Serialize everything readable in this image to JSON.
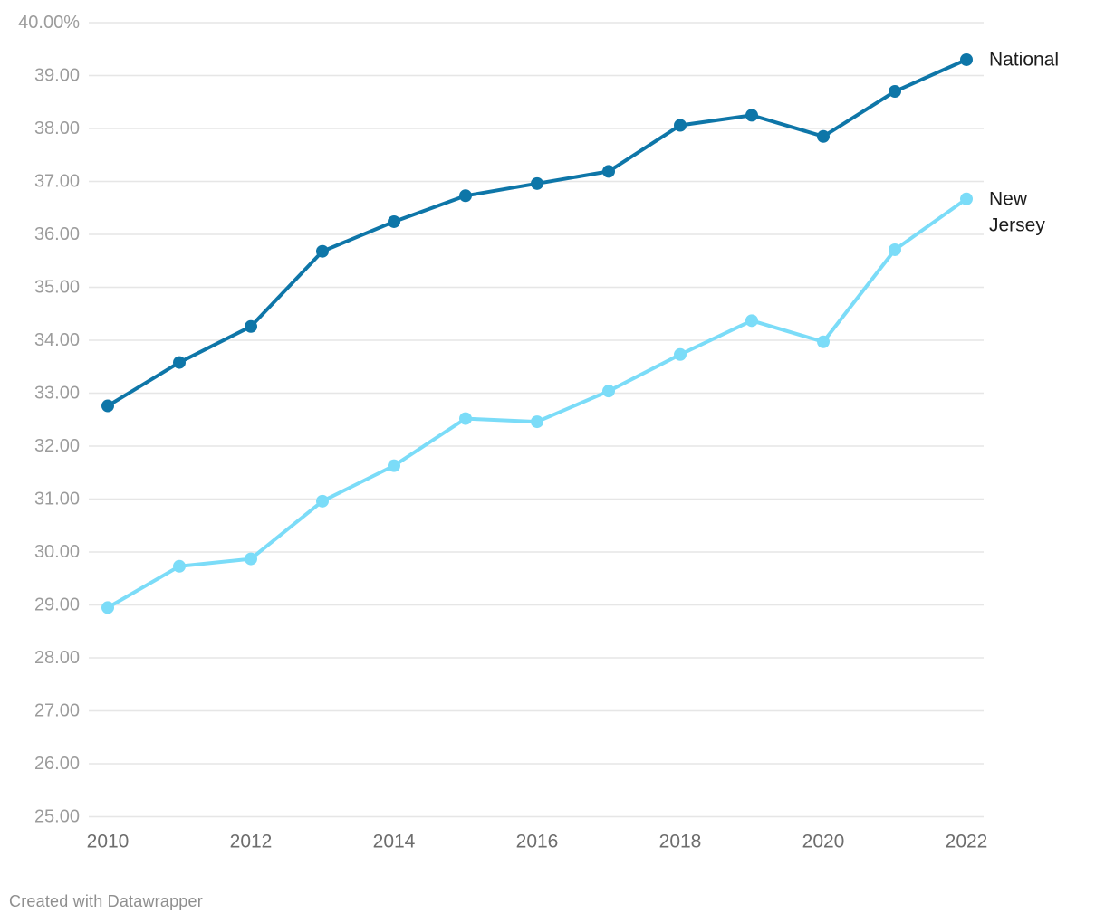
{
  "chart_data": {
    "type": "line",
    "x": [
      2010,
      2011,
      2012,
      2013,
      2014,
      2015,
      2016,
      2017,
      2018,
      2019,
      2020,
      2021,
      2022
    ],
    "x_ticks": [
      {
        "year": 2010,
        "label": "2010"
      },
      {
        "year": 2012,
        "label": "2012"
      },
      {
        "year": 2014,
        "label": "2014"
      },
      {
        "year": 2016,
        "label": "2016"
      },
      {
        "year": 2018,
        "label": "2018"
      },
      {
        "year": 2020,
        "label": "2020"
      },
      {
        "year": 2022,
        "label": "2022"
      }
    ],
    "y_axis": {
      "min": 25,
      "max": 40,
      "step": 1,
      "ticks": [
        {
          "v": 40,
          "label": "40.00%"
        },
        {
          "v": 39,
          "label": "39.00"
        },
        {
          "v": 38,
          "label": "38.00"
        },
        {
          "v": 37,
          "label": "37.00"
        },
        {
          "v": 36,
          "label": "36.00"
        },
        {
          "v": 35,
          "label": "35.00"
        },
        {
          "v": 34,
          "label": "34.00"
        },
        {
          "v": 33,
          "label": "33.00"
        },
        {
          "v": 32,
          "label": "32.00"
        },
        {
          "v": 31,
          "label": "31.00"
        },
        {
          "v": 30,
          "label": "30.00"
        },
        {
          "v": 29,
          "label": "29.00"
        },
        {
          "v": 28,
          "label": "28.00"
        },
        {
          "v": 27,
          "label": "27.00"
        },
        {
          "v": 26,
          "label": "26.00"
        },
        {
          "v": 25,
          "label": "25.00"
        }
      ]
    },
    "grid": true,
    "legend_position": "direct-labels-right",
    "series": [
      {
        "name": "National",
        "label_lines": [
          "National"
        ],
        "color": "#0e76a8",
        "values": [
          32.76,
          33.58,
          34.26,
          35.68,
          36.24,
          36.73,
          36.96,
          37.19,
          38.06,
          38.25,
          37.85,
          38.7,
          39.3
        ]
      },
      {
        "name": "New Jersey",
        "label_lines": [
          "New",
          "Jersey"
        ],
        "color": "#7bdcf8",
        "values": [
          28.95,
          29.73,
          29.87,
          30.96,
          31.63,
          32.52,
          32.46,
          33.04,
          33.73,
          34.37,
          33.97,
          35.71,
          36.67
        ]
      }
    ]
  },
  "colors": {
    "background": "#ffffff",
    "grid": "#e6e6e6",
    "y_tick_text": "#9c9c9c",
    "x_tick_text": "#6d6d6d",
    "series_label_text": "#1d1d1d",
    "footer_text": "#8f8f8f"
  },
  "footer": {
    "credit": "Created with Datawrapper"
  }
}
